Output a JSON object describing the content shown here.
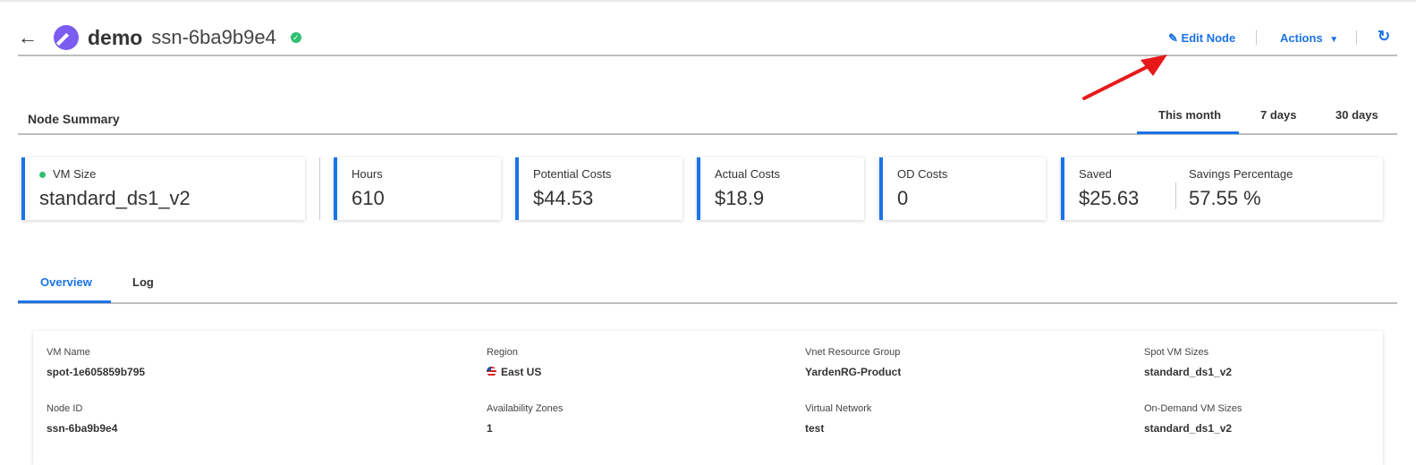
{
  "header": {
    "app": "demo",
    "node": "ssn-6ba9b9e4",
    "edit_label": "Edit Node",
    "actions_label": "Actions"
  },
  "summary": {
    "title": "Node Summary",
    "periods": [
      "This month",
      "7 days",
      "30 days"
    ],
    "active_period": "This month",
    "cards": [
      {
        "label": "VM Size",
        "value": "standard_ds1_v2"
      },
      {
        "label": "Hours",
        "value": "610"
      },
      {
        "label": "Potential Costs",
        "value": "$44.53"
      },
      {
        "label": "Actual Costs",
        "value": "$18.9"
      },
      {
        "label": "OD Costs",
        "value": "0"
      },
      {
        "label": "Saved",
        "value": "$25.63"
      },
      {
        "label": "Savings Percentage",
        "value": "57.55 %"
      }
    ]
  },
  "tabs": [
    "Overview",
    "Log"
  ],
  "active_tab": "Overview",
  "details": [
    {
      "label": "VM Name",
      "value": "spot-1e605859b795"
    },
    {
      "label": "Region",
      "value": "East US"
    },
    {
      "label": "Vnet Resource Group",
      "value": "YardenRG-Product"
    },
    {
      "label": "Spot VM Sizes",
      "value": "standard_ds1_v2"
    },
    {
      "label": "Node ID",
      "value": "ssn-6ba9b9e4"
    },
    {
      "label": "Availability Zones",
      "value": "1"
    },
    {
      "label": "Virtual Network",
      "value": "test"
    },
    {
      "label": "On-Demand VM Sizes",
      "value": "standard_ds1_v2"
    }
  ],
  "colors": {
    "accent": "#1a73e8",
    "status_ok": "#2fbf71",
    "logo": "#7b5cf0",
    "annotation": "#e8191a"
  }
}
